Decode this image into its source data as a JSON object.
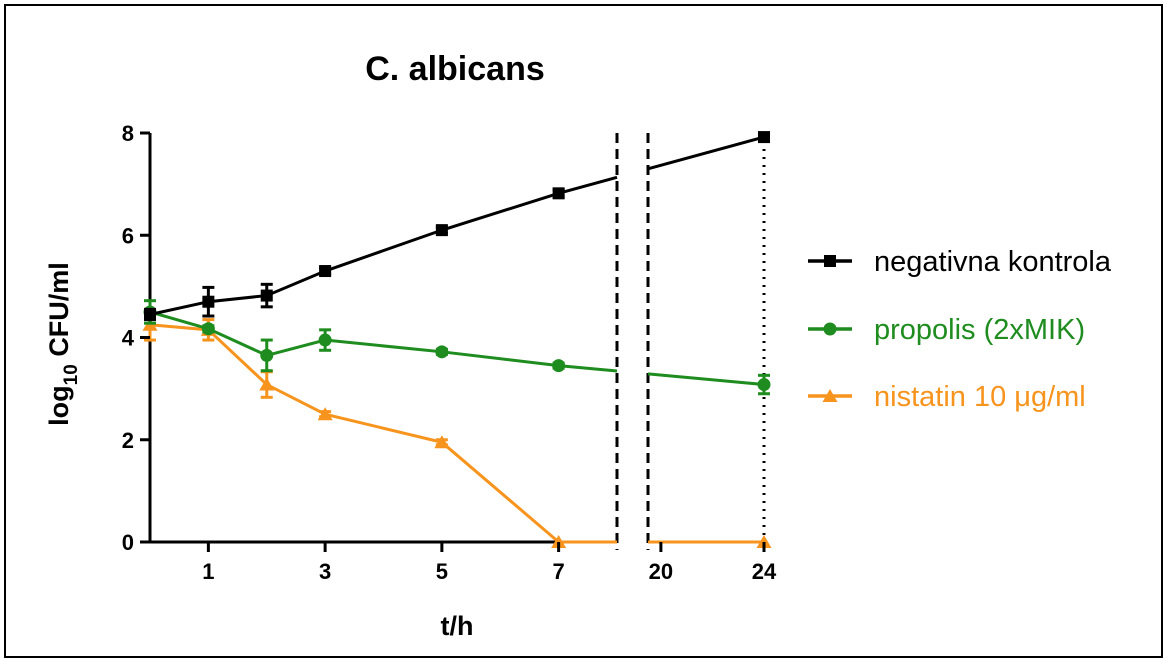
{
  "chart_data": {
    "type": "line",
    "title": "C. albicans",
    "xlabel": "t/h",
    "ylabel_main": "log",
    "ylabel_sub": "10",
    "ylabel_rest": " CFU/ml",
    "x_ticks": [
      "1",
      "3",
      "5",
      "7",
      "20",
      "24"
    ],
    "y_ticks": [
      "0",
      "2",
      "4",
      "6",
      "8"
    ],
    "ylim": [
      0,
      8
    ],
    "x_axis_break": "between 7 and 20",
    "legend_position": "right",
    "series": [
      {
        "name": "negativna kontrola",
        "color": "#000000",
        "marker": "square",
        "x": [
          0,
          1,
          2,
          3,
          5,
          7,
          24
        ],
        "y": [
          4.45,
          4.7,
          4.82,
          5.3,
          6.1,
          6.82,
          7.92
        ],
        "err": [
          0.1,
          0.28,
          0.22,
          0.06,
          0.06,
          0.07,
          0.06
        ]
      },
      {
        "name": "propolis (2xMIK)",
        "color": "#1e8c1e",
        "marker": "circle",
        "x": [
          0,
          1,
          2,
          3,
          5,
          7,
          24
        ],
        "y": [
          4.5,
          4.17,
          3.65,
          3.95,
          3.72,
          3.45,
          3.08
        ],
        "err": [
          0.22,
          0.06,
          0.3,
          0.2,
          0.05,
          0.05,
          0.18
        ]
      },
      {
        "name": "nistatin 10 μg/ml",
        "color": "#f7941d",
        "marker": "triangle",
        "x": [
          0,
          1,
          2,
          3,
          5,
          7,
          24
        ],
        "y": [
          4.25,
          4.15,
          3.08,
          2.5,
          1.95,
          0,
          0
        ],
        "err": [
          0.3,
          0.2,
          0.25,
          0.05,
          0.05,
          0,
          0
        ]
      }
    ]
  }
}
